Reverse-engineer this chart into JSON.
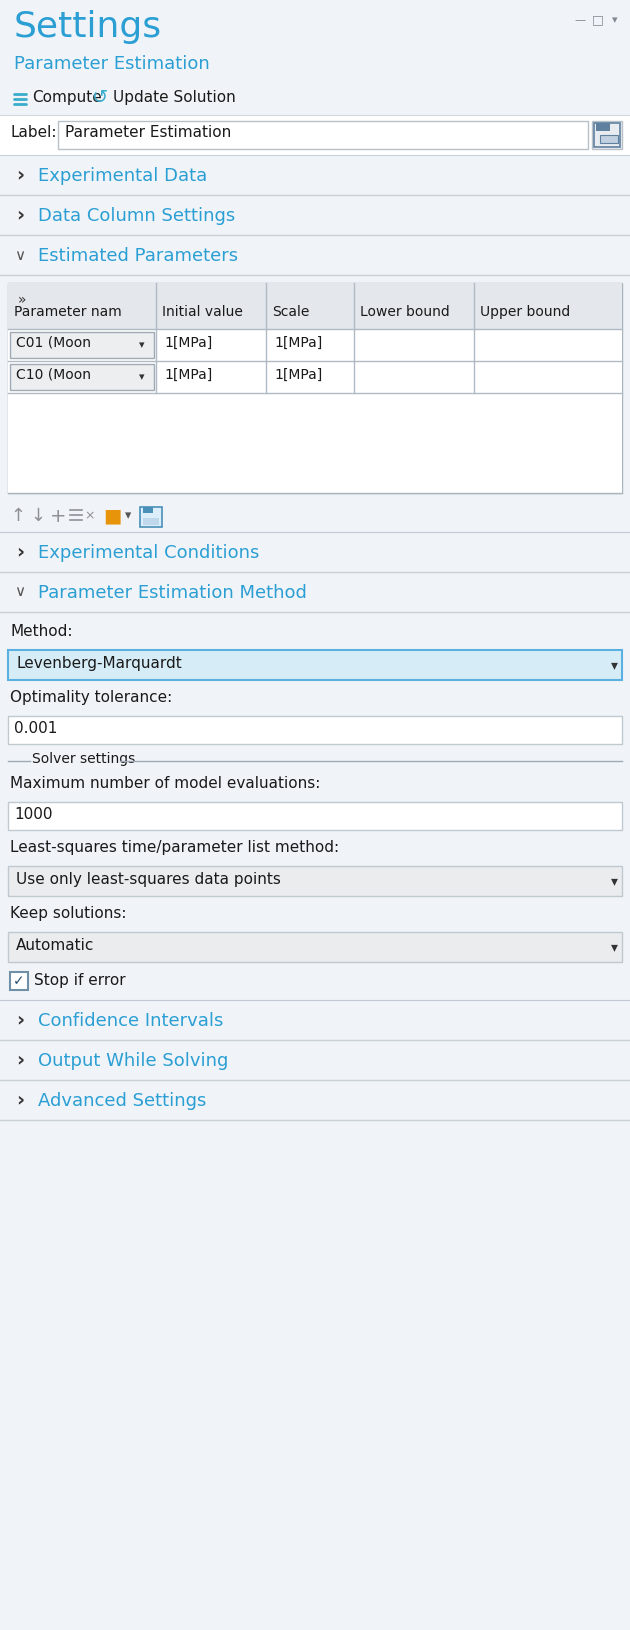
{
  "panel_bg": "#f0f4f8",
  "white": "#ffffff",
  "blue_header": "#2b9fd4",
  "text_dark": "#1a1a1a",
  "border_color": "#c8d0d8",
  "table_header_bg": "#e4e8ec",
  "table_row_bg": "#f0f2f4",
  "dropdown_blue_bg": "#d6edf8",
  "dropdown_border": "#5ab0e0",
  "input_bg": "#ffffff",
  "input_border": "#c0c8d0",
  "title": "Settings",
  "subtitle": "Parameter Estimation",
  "label_text": "Label:",
  "label_value": "Parameter Estimation",
  "table_headers": [
    "Parameter nam",
    "Initial value",
    "Scale",
    "Lower bound",
    "Upper bound"
  ],
  "table_rows": [
    [
      "C01 (Moon▾",
      "1[MPa]",
      "1[MPa]",
      "",
      ""
    ],
    [
      "C10 (Moon▾",
      "1[MPa]",
      "1[MPa]",
      "",
      ""
    ]
  ],
  "method_label": "Method:",
  "method_value": "Levenberg-Marquardt",
  "opt_tol_label": "Optimality tolerance:",
  "opt_tol_value": "0.001",
  "solver_settings": "Solver settings",
  "max_eval_label": "Maximum number of model evaluations:",
  "max_eval_value": "1000",
  "ls_label": "Least-squares time/parameter list method:",
  "ls_value": "Use only least-squares data points",
  "keep_label": "Keep solutions:",
  "keep_value": "Automatic",
  "stop_label": "Stop if error",
  "sections_collapsed": [
    "Experimental Data",
    "Data Column Settings",
    "Experimental Conditions",
    "Confidence Intervals",
    "Output While Solving",
    "Advanced Settings"
  ],
  "section_expanded_1": "Estimated Parameters",
  "section_expanded_2": "Parameter Estimation Method"
}
